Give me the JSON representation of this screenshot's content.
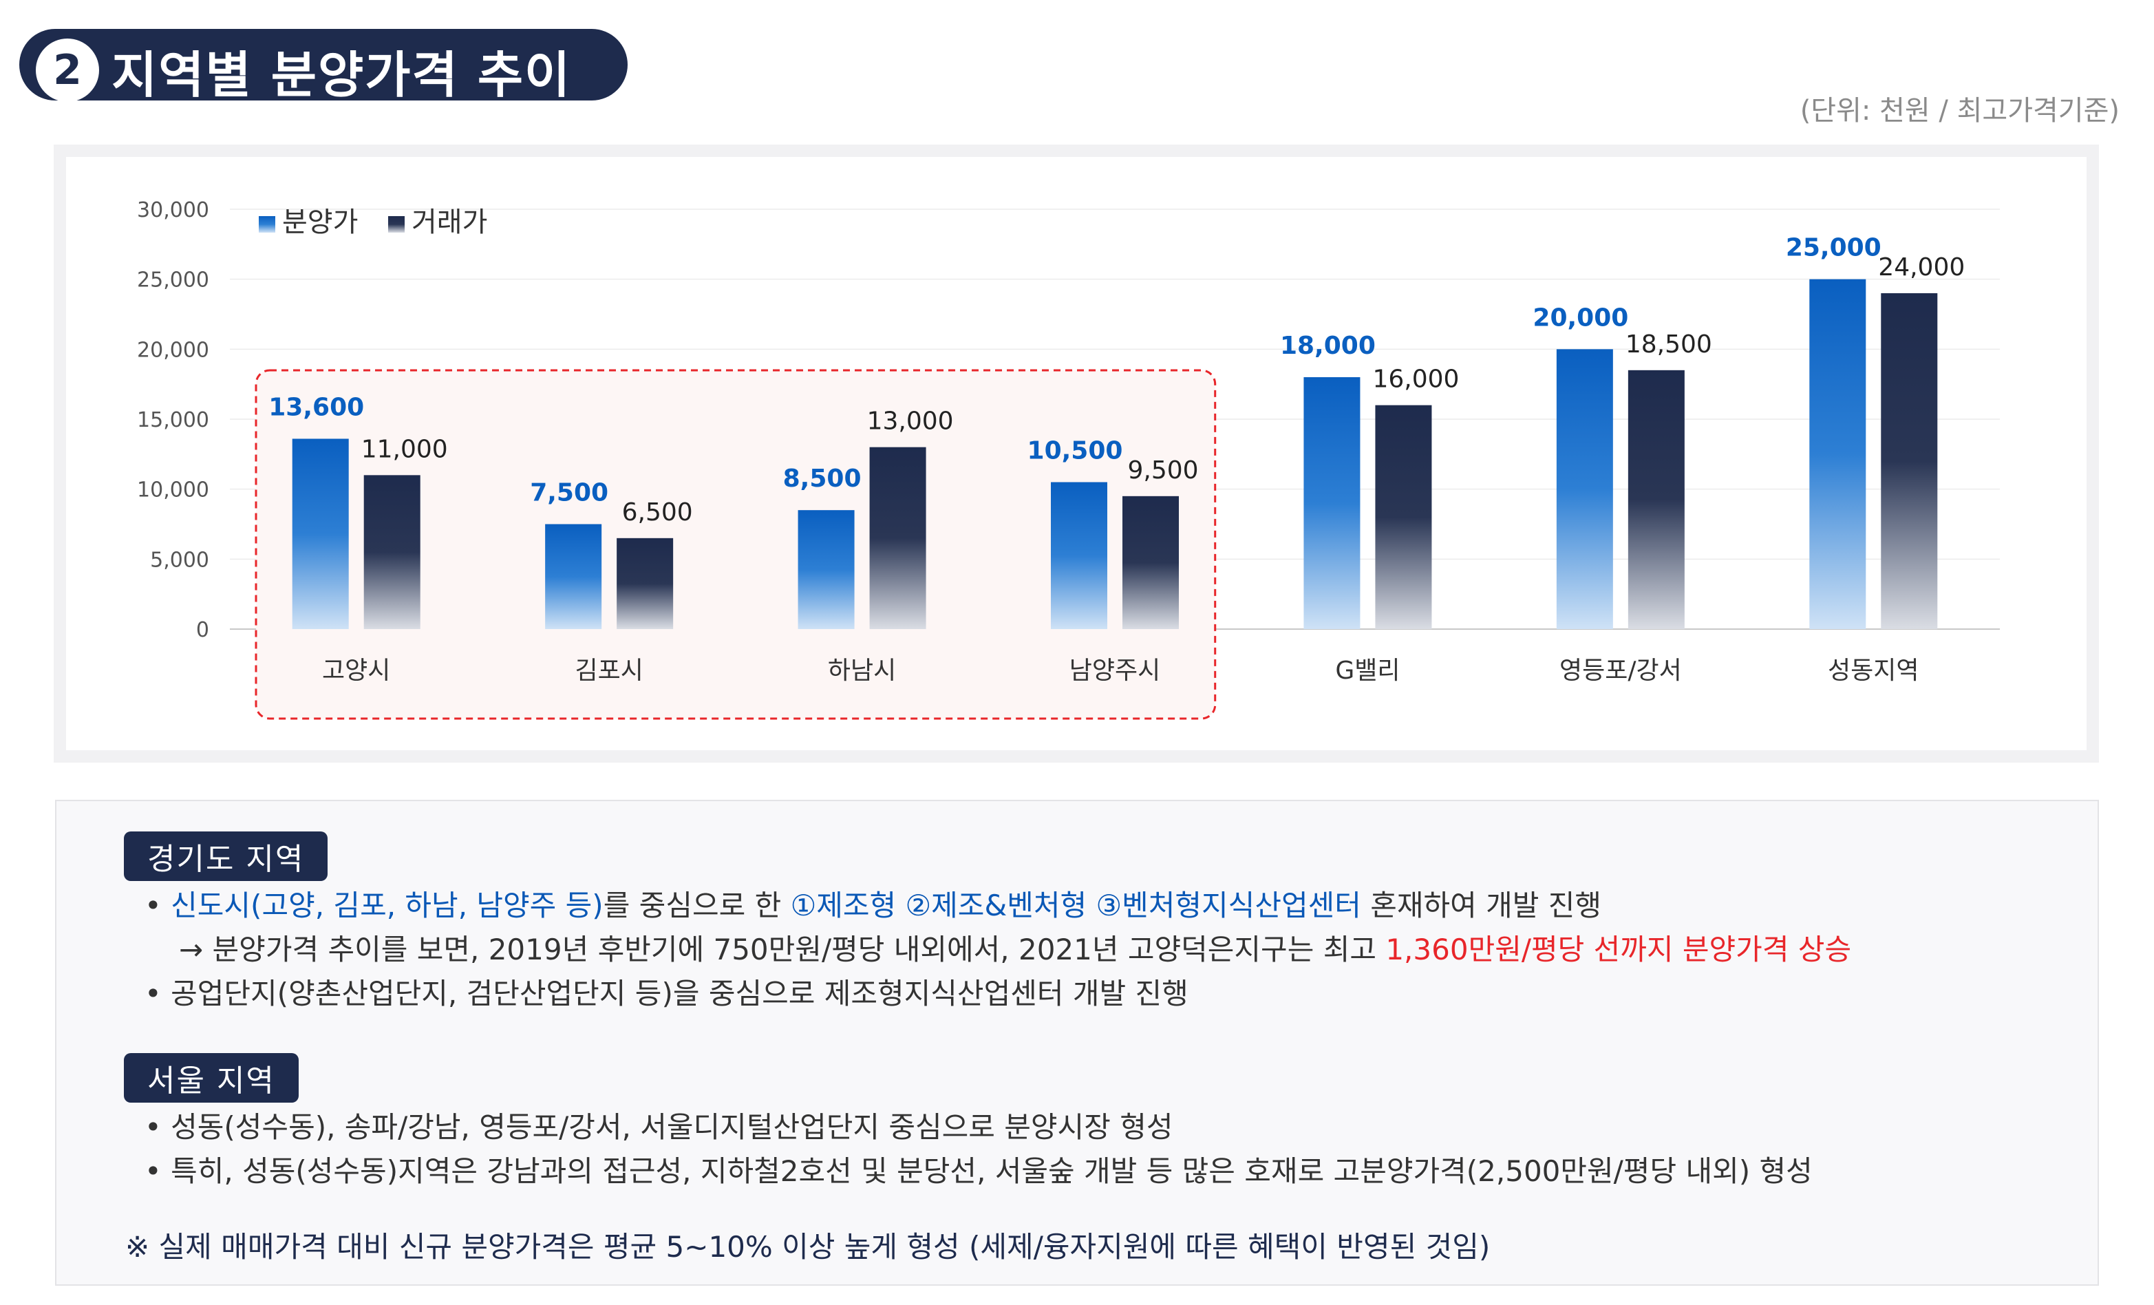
{
  "header": {
    "number": "2",
    "title": "지역별 분양가격 추이",
    "unit": "(단위: 천원 / 최고가격기준)"
  },
  "chart_data": {
    "type": "bar",
    "categories": [
      "고양시",
      "김포시",
      "하남시",
      "남양주시",
      "G밸리",
      "영등포/강서",
      "성동지역"
    ],
    "series": [
      {
        "name": "분양가",
        "values": [
          13600,
          7500,
          8500,
          10500,
          18000,
          20000,
          25000
        ],
        "labels": [
          "13,600",
          "7,500",
          "8,500",
          "10,500",
          "18,000",
          "20,000",
          "25,000"
        ],
        "color": "#0a5fc0"
      },
      {
        "name": "거래가",
        "values": [
          11000,
          6500,
          13000,
          9500,
          16000,
          18500,
          24000
        ],
        "labels": [
          "11,000",
          "6,500",
          "13,000",
          "9,500",
          "16,000",
          "18,500",
          "24,000"
        ],
        "color": "#1e2b4d"
      }
    ],
    "ylim": [
      0,
      30000
    ],
    "yticks": [
      0,
      5000,
      10000,
      15000,
      20000,
      25000,
      30000
    ],
    "ytick_labels": [
      "0",
      "5,000",
      "10,000",
      "15,000",
      "20,000",
      "25,000",
      "30,000"
    ],
    "grid": true,
    "legend": "top-left",
    "highlight": {
      "categories": [
        "고양시",
        "김포시",
        "하남시",
        "남양주시"
      ],
      "style": "dashed red box",
      "color": "#e8262a"
    }
  },
  "notes": {
    "gyeonggi": {
      "tag": "경기도 지역",
      "l1": {
        "bullet": "•",
        "blue": "신도시(고양, 김포, 하남, 남양주 등)",
        "mid1": "를 중심으로 한 ",
        "blue2": "①제조형 ②제조&벤처형 ③벤처형지식산업센터",
        "end": " 혼재하여 개발 진행"
      },
      "l2": {
        "text": "→ 분양가격 추이를 보면, 2019년 후반기에 750만원/평당 내외에서, 2021년 고양덕은지구는 최고 ",
        "red": "1,360만원/평당 선까지 분양가격 상승"
      },
      "l3": "• 공업단지(양촌산업단지, 검단산업단지 등)을 중심으로 제조형지식산업센터 개발 진행"
    },
    "seoul": {
      "tag": "서울 지역",
      "l1": "• 성동(성수동), 송파/강남, 영등포/강서, 서울디지털산업단지 중심으로 분양시장 형성",
      "l2": "• 특히, 성동(성수동)지역은 강남과의 접근성, 지하철2호선 및 분당선, 서울숲 개발 등 많은 호재로 고분양가격(2,500만원/평당 내외) 형성"
    },
    "footnote": "※ 실제 매매가격 대비 신규 분양가격은 평균 5~10% 이상 높게 형성 (세제/융자지원에 따른 혜택이 반영된 것임)"
  }
}
